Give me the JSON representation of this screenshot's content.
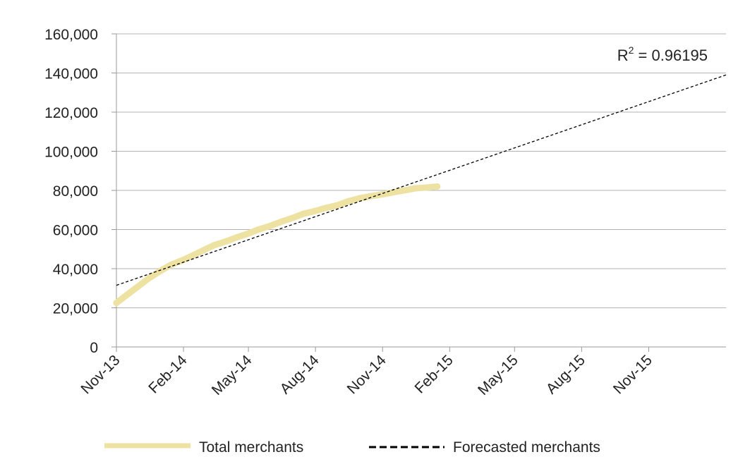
{
  "chart_data": {
    "type": "line",
    "title": "",
    "xlabel": "",
    "ylabel": "",
    "ylim": [
      0,
      160000
    ],
    "xlim": [
      "2013-11-01",
      "2016-02-15"
    ],
    "yticks": [
      0,
      20000,
      40000,
      60000,
      80000,
      100000,
      120000,
      140000,
      160000
    ],
    "ytick_labels": [
      "0",
      "20,000",
      "40,000",
      "60,000",
      "80,000",
      "100,000",
      "120,000",
      "140,000",
      "160,000"
    ],
    "xticks": [
      "2013-11-01",
      "2014-02-01",
      "2014-05-01",
      "2014-08-01",
      "2014-11-01",
      "2015-02-01",
      "2015-05-01",
      "2015-08-01",
      "2015-11-01"
    ],
    "xtick_labels": [
      "Nov-13",
      "Feb-14",
      "May-14",
      "Aug-14",
      "Nov-14",
      "Feb-15",
      "May-15",
      "Aug-15",
      "Nov-15"
    ],
    "grid": "horizontal",
    "legend_position": "bottom",
    "series": [
      {
        "name": "Total merchants",
        "color": "#ede2a1",
        "style": "solid-thick",
        "x": [
          "2013-11-01",
          "2013-11-15",
          "2013-12-01",
          "2013-12-15",
          "2014-01-01",
          "2014-01-15",
          "2014-02-01",
          "2014-02-15",
          "2014-03-01",
          "2014-03-15",
          "2014-04-01",
          "2014-04-15",
          "2014-05-01",
          "2014-05-15",
          "2014-06-01",
          "2014-06-15",
          "2014-07-01",
          "2014-07-15",
          "2014-08-01",
          "2014-08-15",
          "2014-09-01",
          "2014-09-15",
          "2014-10-01",
          "2014-10-15",
          "2014-11-01",
          "2014-11-15",
          "2014-12-01",
          "2014-12-15",
          "2015-01-01",
          "2015-01-15"
        ],
        "values": [
          22500,
          26500,
          31000,
          35000,
          39000,
          42000,
          44500,
          47000,
          49500,
          52000,
          54000,
          56000,
          58000,
          60000,
          62000,
          64000,
          66000,
          68000,
          69500,
          71000,
          72500,
          74500,
          76000,
          77000,
          78000,
          79000,
          80000,
          81000,
          81500,
          82000
        ]
      },
      {
        "name": "Forecasted merchants",
        "color": "#000000",
        "style": "dashed",
        "x": [
          "2013-11-01",
          "2016-02-15"
        ],
        "values": [
          31500,
          139000
        ]
      }
    ],
    "annotations": [
      {
        "text_base": "R",
        "superscript": "2",
        "text_rest": " = 0.96195"
      }
    ]
  }
}
